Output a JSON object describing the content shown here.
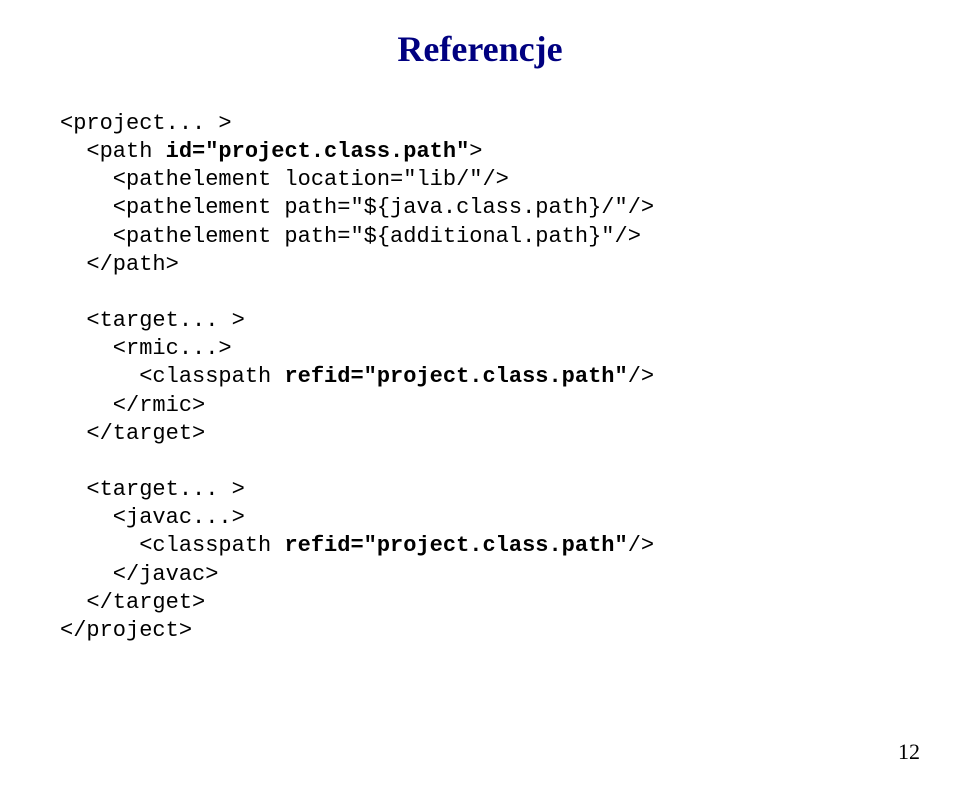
{
  "title": "Referencje",
  "code": {
    "l1": "<project... >",
    "l2": "  <path ",
    "l2b": "id=\"project.class.path\"",
    "l2c": ">",
    "l3": "    <pathelement location=\"lib/\"/>",
    "l4": "    <pathelement path=\"${java.class.path}/\"/>",
    "l5": "    <pathelement path=\"${additional.path}\"/>",
    "l6": "  </path>",
    "blank1": " ",
    "l7": "  <target... >",
    "l8": "    <rmic...>",
    "l9a": "      <classpath ",
    "l9b": "refid=\"project.class.path\"",
    "l9c": "/>",
    "l10": "    </rmic>",
    "l11": "  </target>",
    "blank2": " ",
    "l12": "  <target... >",
    "l13": "    <javac...>",
    "l14a": "      <classpath ",
    "l14b": "refid=\"project.class.path\"",
    "l14c": "/>",
    "l15": "    </javac>",
    "l16": "  </target>",
    "l17": "</project>"
  },
  "pageNumber": "12",
  "colors": {
    "titleColor": "#000080",
    "textColor": "#000000",
    "background": "#ffffff"
  },
  "fonts": {
    "title": {
      "family": "Times New Roman",
      "size_pt": 28,
      "weight": "bold"
    },
    "code": {
      "family": "Courier New",
      "size_pt": 16
    }
  }
}
